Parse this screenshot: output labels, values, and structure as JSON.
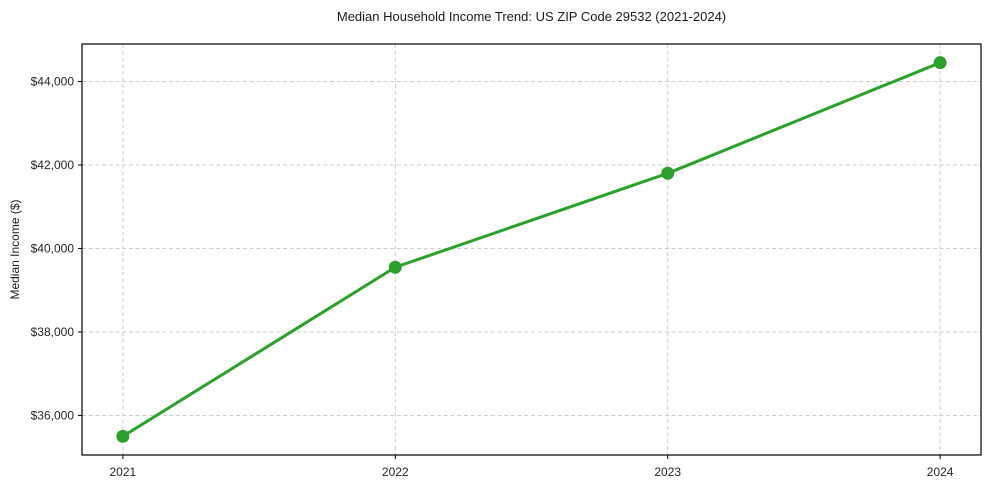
{
  "chart_data": {
    "type": "line",
    "title": "Median Household Income Trend: US ZIP Code 29532 (2021-2024)",
    "xlabel": "",
    "ylabel": "Median Income ($)",
    "x": [
      2021,
      2022,
      2023,
      2024
    ],
    "x_tick_labels": [
      "2021",
      "2022",
      "2023",
      "2024"
    ],
    "series": [
      {
        "name": "Median Household Income",
        "values": [
          35500,
          39550,
          41800,
          44450
        ]
      }
    ],
    "y_ticks": [
      36000,
      38000,
      40000,
      42000,
      44000
    ],
    "y_tick_labels": [
      "$36,000",
      "$38,000",
      "$40,000",
      "$42,000",
      "$44,000"
    ],
    "xlim": [
      2020.85,
      2024.15
    ],
    "ylim": [
      35052.5,
      44897.5
    ],
    "grid": true,
    "grid_style": "dashed",
    "legend_position": "none",
    "line_color": "#2ca02c",
    "marker": "circle",
    "marker_size": 13,
    "line_width": 3,
    "grid_color": "#cccccc",
    "axis_color": "#000000",
    "background_color": "#ffffff",
    "text_color": "#262626"
  }
}
